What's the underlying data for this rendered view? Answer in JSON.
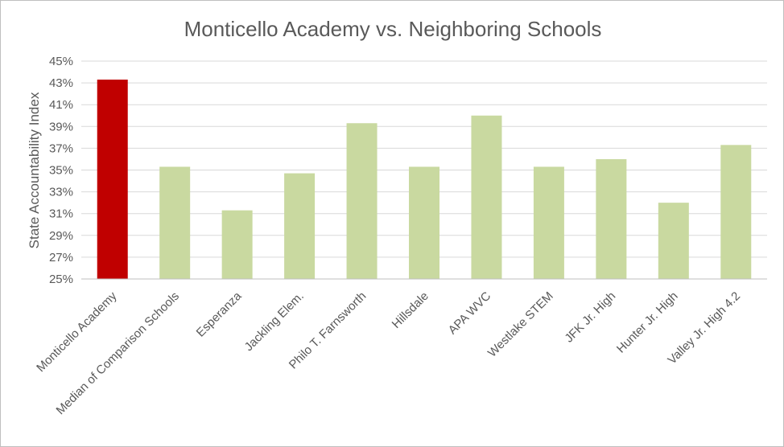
{
  "chart_data": {
    "type": "bar",
    "title": "Monticello Academy vs. Neighboring Schools",
    "ylabel": "State Accountability Index",
    "xlabel": "",
    "ylim": [
      25,
      45
    ],
    "yticks": [
      25,
      27,
      29,
      31,
      33,
      35,
      37,
      39,
      41,
      43,
      45
    ],
    "ytick_format": "%",
    "grid": true,
    "legend": "none",
    "categories": [
      "Monticello Academy",
      "Median of Comparison Schools",
      "Esperanza",
      "Jackling Elem.",
      "Philo T. Farnsworth",
      "Hillsdale",
      "APA WVC",
      "Westlake STEM",
      "JFK Jr. High",
      "Hunter Jr. High",
      "Valley Jr. High 4.2"
    ],
    "values": [
      43.3,
      35.3,
      31.3,
      34.7,
      39.3,
      35.3,
      40.0,
      35.3,
      36.0,
      32.0,
      37.3
    ],
    "colors": {
      "highlight": "#c00000",
      "default": "#c9d9a0"
    },
    "highlight_index": 0
  }
}
